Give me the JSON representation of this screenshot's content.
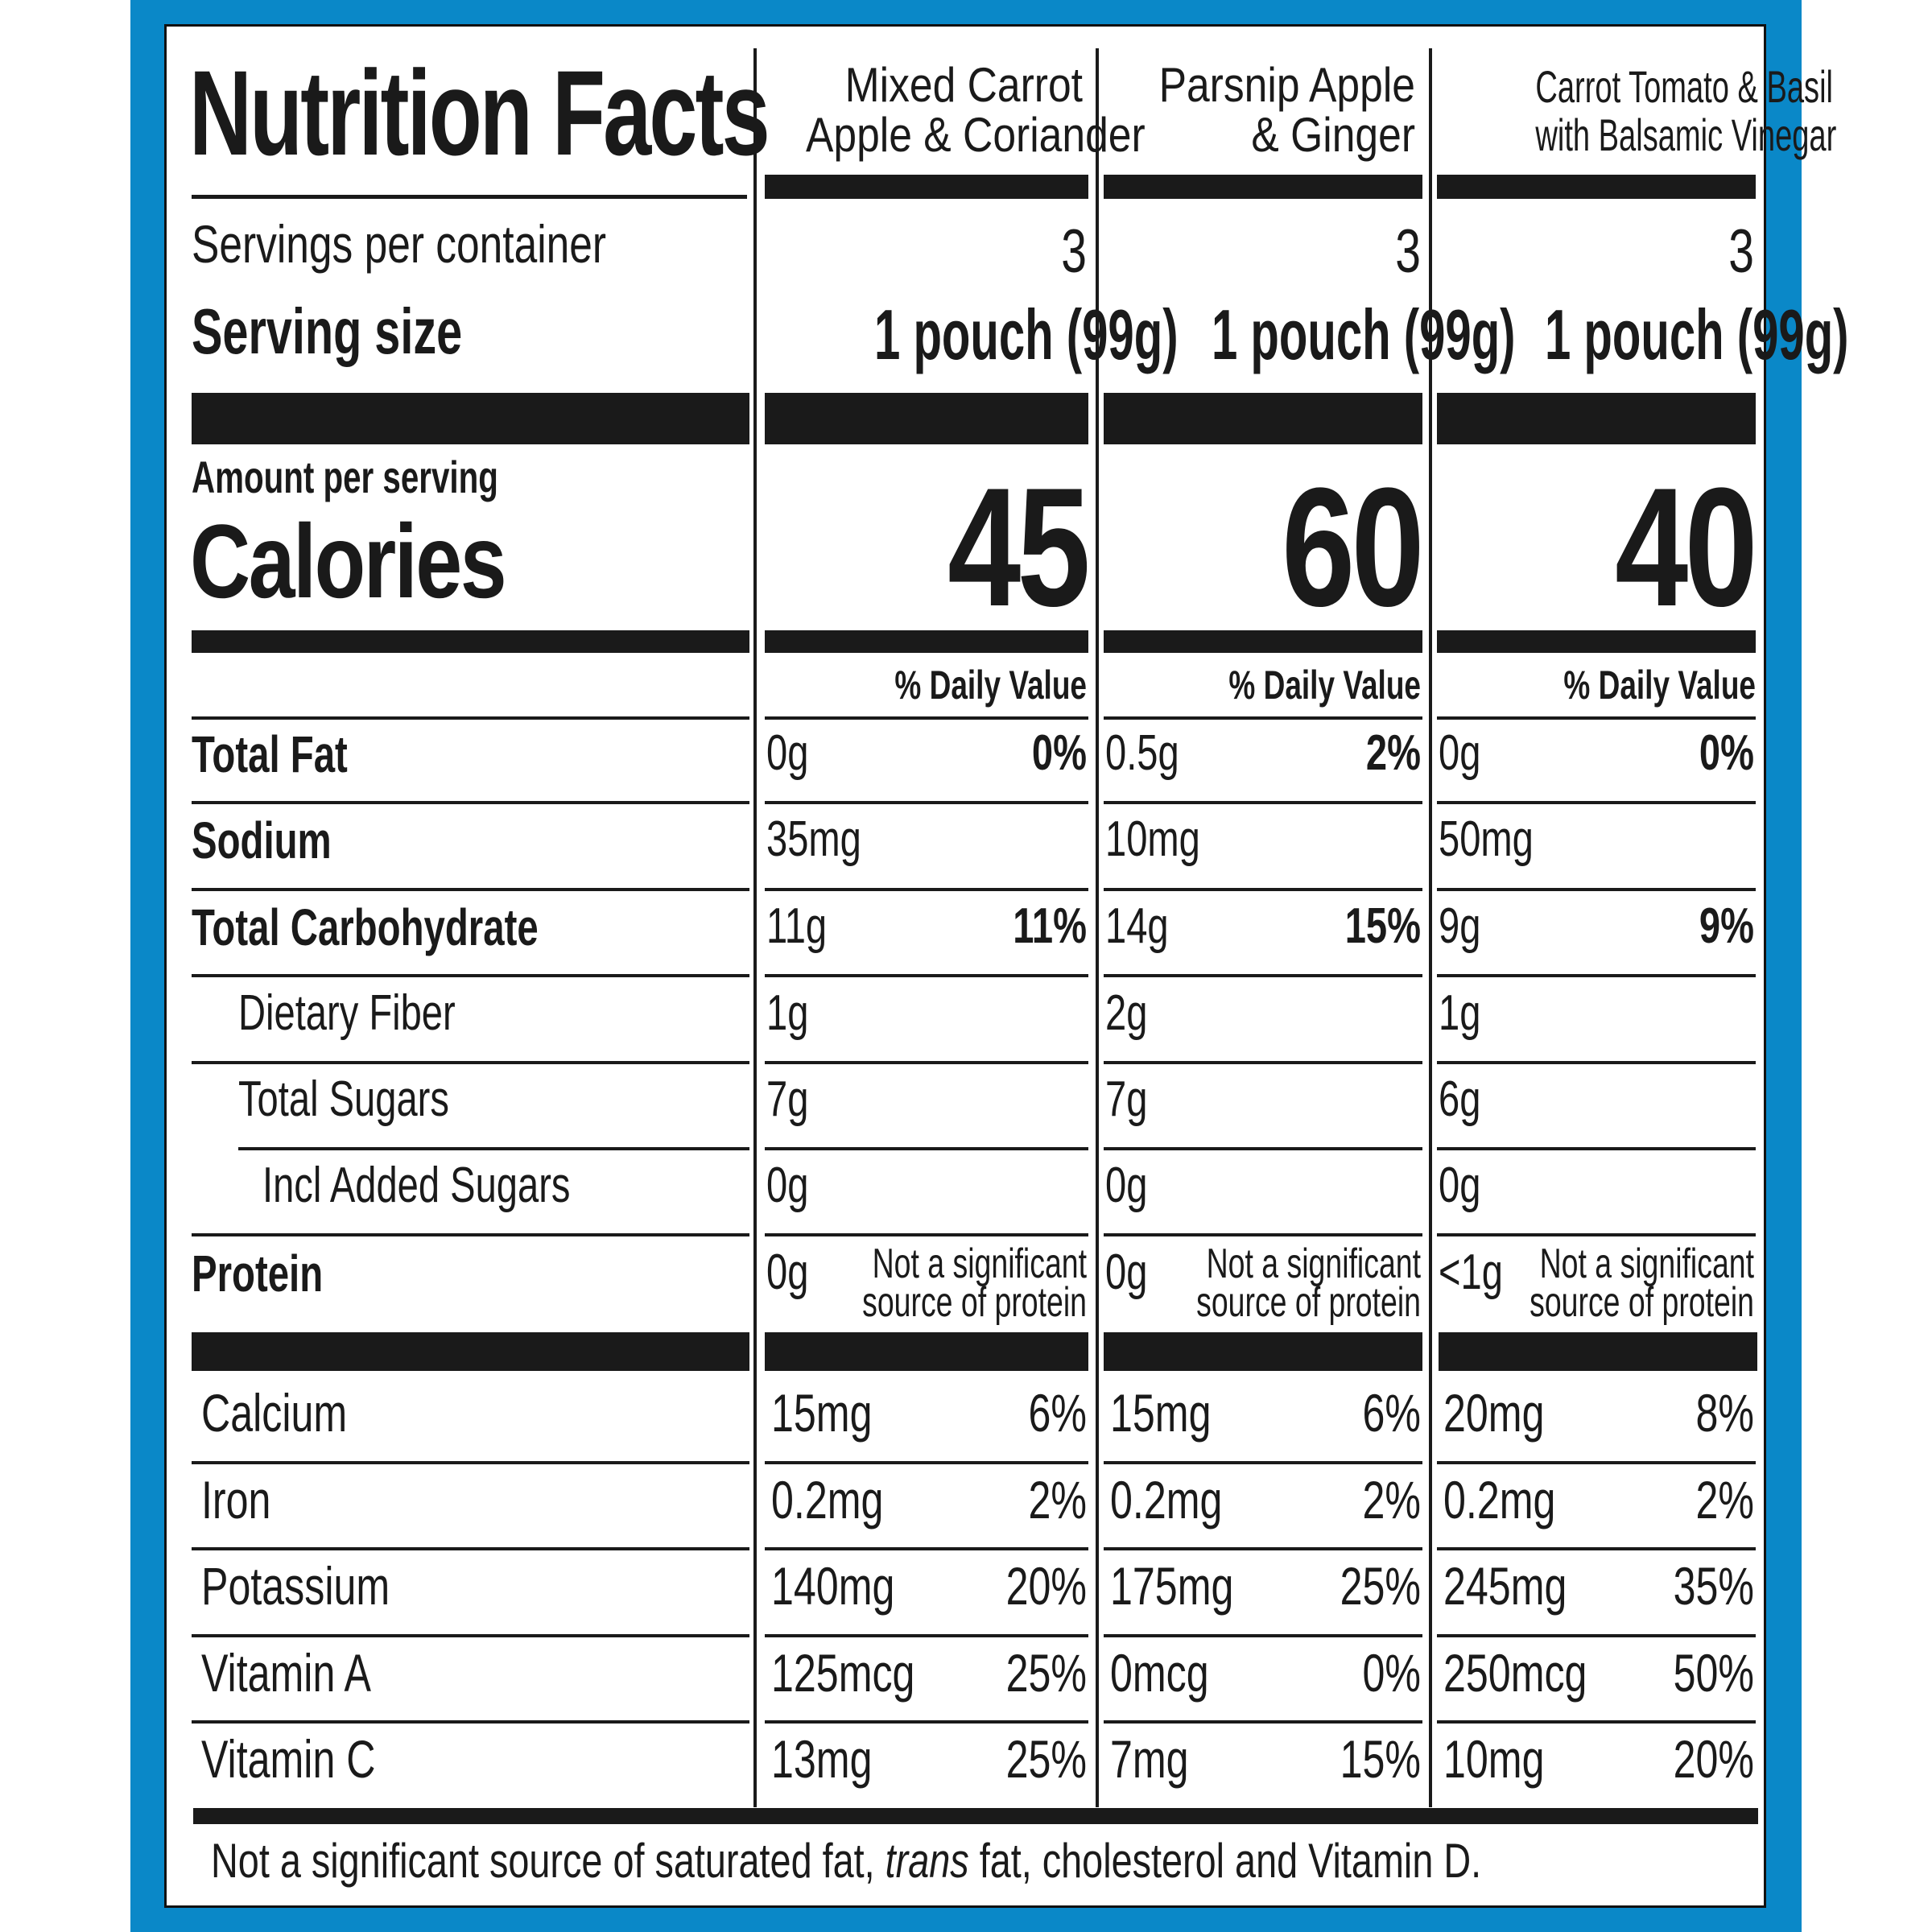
{
  "label": {
    "title": "Nutrition Facts",
    "products": [
      {
        "name_line1": "Mixed Carrot",
        "name_line2": "Apple & Coriander",
        "servings": "3",
        "serving_size": "1 pouch (99g)",
        "calories": "45",
        "total_fat": "0g",
        "total_fat_dv": "0%",
        "sodium": "35mg",
        "total_carb": "11g",
        "total_carb_dv": "11%",
        "fiber": "1g",
        "total_sugars": "7g",
        "added_sugars": "0g",
        "protein": "0g",
        "protein_note_1": "Not a significant",
        "protein_note_2": "source of protein",
        "calcium": "15mg",
        "calcium_dv": "6%",
        "iron": "0.2mg",
        "iron_dv": "2%",
        "potassium": "140mg",
        "potassium_dv": "20%",
        "vitamin_a": "125mcg",
        "vitamin_a_dv": "25%",
        "vitamin_c": "13mg",
        "vitamin_c_dv": "25%"
      },
      {
        "name_line1": "Parsnip Apple",
        "name_line2": "& Ginger",
        "servings": "3",
        "serving_size": "1 pouch (99g)",
        "calories": "60",
        "total_fat": "0.5g",
        "total_fat_dv": "2%",
        "sodium": "10mg",
        "total_carb": "14g",
        "total_carb_dv": "15%",
        "fiber": "2g",
        "total_sugars": "7g",
        "added_sugars": "0g",
        "protein": "0g",
        "protein_note_1": "Not a significant",
        "protein_note_2": "source of protein",
        "calcium": "15mg",
        "calcium_dv": "6%",
        "iron": "0.2mg",
        "iron_dv": "2%",
        "potassium": "175mg",
        "potassium_dv": "25%",
        "vitamin_a": "0mcg",
        "vitamin_a_dv": "0%",
        "vitamin_c": "7mg",
        "vitamin_c_dv": "15%"
      },
      {
        "name_line1": "Carrot Tomato & Basil",
        "name_line2": "with Balsamic Vinegar",
        "servings": "3",
        "serving_size": "1 pouch (99g)",
        "calories": "40",
        "total_fat": "0g",
        "total_fat_dv": "0%",
        "sodium": "50mg",
        "total_carb": "9g",
        "total_carb_dv": "9%",
        "fiber": "1g",
        "total_sugars": "6g",
        "added_sugars": "0g",
        "protein": "<1g",
        "protein_note_1": "Not a significant",
        "protein_note_2": "source of protein",
        "calcium": "20mg",
        "calcium_dv": "8%",
        "iron": "0.2mg",
        "iron_dv": "2%",
        "potassium": "245mg",
        "potassium_dv": "35%",
        "vitamin_a": "250mcg",
        "vitamin_a_dv": "50%",
        "vitamin_c": "10mg",
        "vitamin_c_dv": "20%"
      }
    ],
    "labels": {
      "servings_per_container": "Servings per container",
      "serving_size": "Serving size",
      "amount_per_serving": "Amount per serving",
      "calories": "Calories",
      "daily_value": "% Daily Value",
      "total_fat": "Total Fat",
      "sodium": "Sodium",
      "total_carb": "Total Carbohydrate",
      "fiber": "Dietary Fiber",
      "total_sugars": "Total Sugars",
      "added_sugars": "Incl Added Sugars",
      "protein": "Protein",
      "calcium": "Calcium",
      "iron": "Iron",
      "potassium": "Potassium",
      "vitamin_a": "Vitamin A",
      "vitamin_c": "Vitamin C"
    },
    "footnote_part1": "Not a significant source of saturated fat, ",
    "footnote_italic": "trans",
    "footnote_part2": " fat, cholesterol and Vitamin D."
  }
}
